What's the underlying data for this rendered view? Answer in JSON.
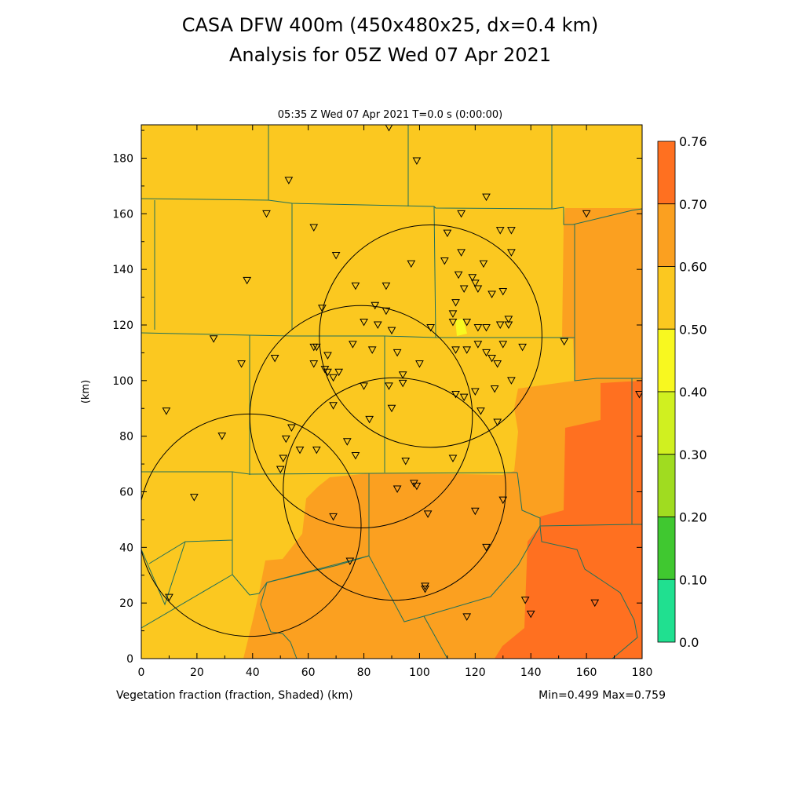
{
  "header": {
    "title_line1": "CASA DFW 400m (450x480x25, dx=0.4 km)",
    "title_line2": "Analysis for 05Z Wed 07 Apr 2021"
  },
  "plot": {
    "time_label": "05:35 Z Wed 07 Apr 2021    T=0.0 s (0:00:00)",
    "field_label": "Vegetation fraction (fraction, Shaded)  (km)",
    "x_axis_unit": "(km)",
    "y_axis_unit": "(km)",
    "minmax_label": "Min=0.499 Max=0.759"
  },
  "colorbar": {
    "labels": [
      "0.76",
      "0.70",
      "0.60",
      "0.50",
      "0.40",
      "0.30",
      "0.20",
      "0.10",
      "0.0"
    ],
    "colors": [
      "#ff7020",
      "#fba020",
      "#fbc820",
      "#f8f820",
      "#d0f020",
      "#a0dc20",
      "#40c830",
      "#20c830",
      "#20e090"
    ]
  },
  "chart_data": {
    "type": "heatmap",
    "x": {
      "range": [
        0,
        180
      ],
      "ticks": [
        "0",
        "20",
        "40",
        "60",
        "80",
        "100",
        "120",
        "140",
        "160",
        "180"
      ],
      "unit": "km"
    },
    "y": {
      "range": [
        0,
        192
      ],
      "ticks": [
        "0",
        "20",
        "40",
        "60",
        "80",
        "100",
        "120",
        "140",
        "160",
        "180"
      ],
      "unit": "km"
    },
    "value_range": [
      0.499,
      0.759
    ],
    "fill_colors": {
      "low": "#fbc820",
      "mid": "#fba020",
      "high": "#ff7020",
      "patch": "#f8f820"
    },
    "radar_circles": [
      {
        "center_km": [
          39,
          48
        ],
        "radius_km": 40
      },
      {
        "center_km": [
          79,
          87
        ],
        "radius_km": 40
      },
      {
        "center_km": [
          104,
          116
        ],
        "radius_km": 40
      },
      {
        "center_km": [
          91,
          61
        ],
        "radius_km": 40
      }
    ],
    "stations_km": [
      [
        89,
        191
      ],
      [
        99,
        179
      ],
      [
        53,
        172
      ],
      [
        124,
        166
      ],
      [
        45,
        160
      ],
      [
        115,
        160
      ],
      [
        160,
        160
      ],
      [
        62,
        155
      ],
      [
        129,
        154
      ],
      [
        133,
        154
      ],
      [
        110,
        153
      ],
      [
        38,
        136
      ],
      [
        77,
        134
      ],
      [
        88,
        134
      ],
      [
        97,
        142
      ],
      [
        109,
        143
      ],
      [
        115,
        146
      ],
      [
        123,
        142
      ],
      [
        133,
        146
      ],
      [
        114,
        138
      ],
      [
        116,
        133
      ],
      [
        119,
        137
      ],
      [
        120,
        135
      ],
      [
        121,
        133
      ],
      [
        126,
        131
      ],
      [
        130,
        132
      ],
      [
        113,
        128
      ],
      [
        112,
        124
      ],
      [
        65,
        126
      ],
      [
        70,
        145
      ],
      [
        84,
        127
      ],
      [
        88,
        125
      ],
      [
        80,
        121
      ],
      [
        85,
        120
      ],
      [
        90,
        118
      ],
      [
        104,
        119
      ],
      [
        112,
        121
      ],
      [
        117,
        121
      ],
      [
        121,
        119
      ],
      [
        124,
        119
      ],
      [
        129,
        120
      ],
      [
        132,
        120
      ],
      [
        132,
        122
      ],
      [
        26,
        115
      ],
      [
        36,
        106
      ],
      [
        48,
        108
      ],
      [
        62,
        112
      ],
      [
        63,
        112
      ],
      [
        62,
        106
      ],
      [
        67,
        109
      ],
      [
        66,
        104
      ],
      [
        67,
        103
      ],
      [
        69,
        101
      ],
      [
        71,
        103
      ],
      [
        76,
        113
      ],
      [
        83,
        111
      ],
      [
        92,
        110
      ],
      [
        100,
        106
      ],
      [
        113,
        111
      ],
      [
        117,
        111
      ],
      [
        121,
        113
      ],
      [
        124,
        110
      ],
      [
        126,
        108
      ],
      [
        128,
        106
      ],
      [
        130,
        113
      ],
      [
        137,
        112
      ],
      [
        152,
        114
      ],
      [
        94,
        102
      ],
      [
        89,
        98
      ],
      [
        80,
        98
      ],
      [
        94,
        99
      ],
      [
        113,
        95
      ],
      [
        116,
        94
      ],
      [
        120,
        96
      ],
      [
        127,
        97
      ],
      [
        133,
        100
      ],
      [
        9,
        89
      ],
      [
        69,
        91
      ],
      [
        82,
        86
      ],
      [
        90,
        90
      ],
      [
        122,
        89
      ],
      [
        128,
        85
      ],
      [
        179,
        95
      ],
      [
        29,
        80
      ],
      [
        52,
        79
      ],
      [
        54,
        83
      ],
      [
        57,
        75
      ],
      [
        63,
        75
      ],
      [
        74,
        78
      ],
      [
        77,
        73
      ],
      [
        95,
        71
      ],
      [
        112,
        72
      ],
      [
        51,
        72
      ],
      [
        50,
        68
      ],
      [
        98,
        63
      ],
      [
        99,
        62
      ],
      [
        92,
        61
      ],
      [
        19,
        58
      ],
      [
        69,
        51
      ],
      [
        103,
        52
      ],
      [
        120,
        53
      ],
      [
        130,
        57
      ],
      [
        75,
        35
      ],
      [
        124,
        40
      ],
      [
        102,
        25
      ],
      [
        102,
        26
      ],
      [
        10,
        22
      ],
      [
        138,
        21
      ],
      [
        140,
        16
      ],
      [
        117,
        15
      ],
      [
        163,
        20
      ]
    ]
  }
}
